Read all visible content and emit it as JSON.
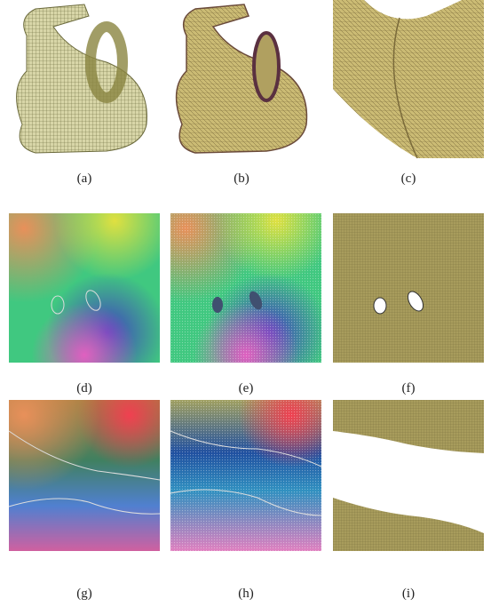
{
  "figure": {
    "panels": [
      {
        "label": "(a)"
      },
      {
        "label": "(b)"
      },
      {
        "label": "(c)"
      },
      {
        "label": "(d)"
      },
      {
        "label": "(e)"
      },
      {
        "label": "(f)"
      },
      {
        "label": "(g)"
      },
      {
        "label": "(h)"
      },
      {
        "label": "(i)"
      }
    ]
  }
}
